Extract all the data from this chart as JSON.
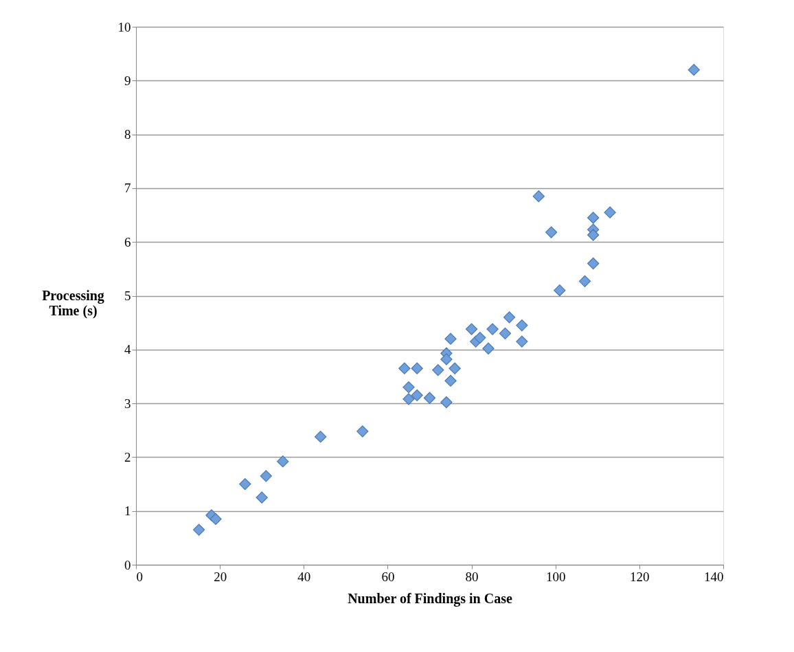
{
  "chart_data": {
    "type": "scatter",
    "xlabel": "Number of Findings in Case",
    "ylabel": "Processing Time (s)",
    "x": [
      15,
      18,
      19,
      26,
      30,
      31,
      35,
      44,
      54,
      64,
      65,
      65,
      67,
      67,
      70,
      72,
      74,
      74,
      74,
      75,
      75,
      76,
      80,
      81,
      82,
      84,
      85,
      88,
      89,
      92,
      92,
      96,
      99,
      101,
      107,
      109,
      109,
      109,
      109,
      113,
      133
    ],
    "series": [
      {
        "color": "#6fa0dc",
        "values": [
          0.65,
          0.92,
          0.85,
          1.5,
          1.25,
          1.65,
          1.92,
          2.38,
          2.48,
          3.65,
          3.3,
          3.08,
          3.65,
          3.15,
          3.1,
          3.62,
          3.93,
          3.82,
          3.02,
          4.2,
          3.42,
          3.65,
          4.38,
          4.15,
          4.22,
          4.02,
          4.38,
          4.3,
          4.6,
          4.45,
          4.15,
          6.85,
          6.18,
          5.1,
          5.27,
          6.45,
          6.23,
          6.13,
          5.6,
          6.55,
          9.2
        ]
      }
    ],
    "xlim": [
      0,
      140
    ],
    "xticks": [
      0,
      20,
      40,
      60,
      80,
      100,
      120,
      140
    ],
    "ylim": [
      0,
      10
    ],
    "yticks": [
      0,
      1,
      2,
      3,
      4,
      5,
      6,
      7,
      8,
      9,
      10
    ],
    "grid": "y",
    "marker": "diamond",
    "legend": false
  }
}
